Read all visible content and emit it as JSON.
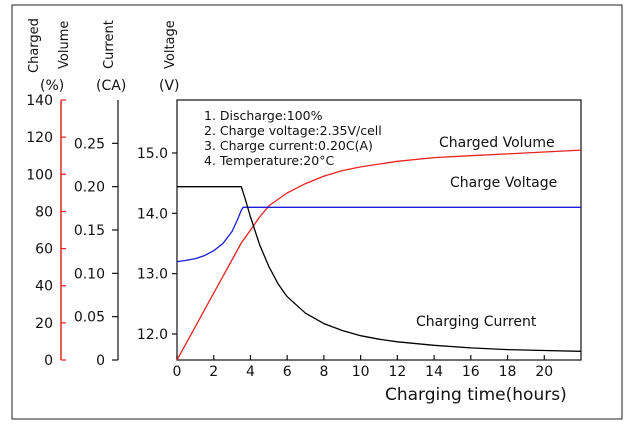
{
  "chart_data": {
    "type": "line",
    "xlabel": "Charging time(hours)",
    "x_ticks": [
      0,
      2,
      4,
      6,
      8,
      10,
      12,
      14,
      16,
      18,
      20
    ],
    "xlim": [
      0,
      22
    ],
    "axes": {
      "charged": {
        "label_line1": "Charged",
        "label_line2": "Volume",
        "unit": "(%)",
        "ticks": [
          0,
          20,
          40,
          60,
          80,
          100,
          120,
          140
        ],
        "ylim": [
          0,
          140
        ],
        "color": "#e8231f"
      },
      "current": {
        "label": "Current",
        "unit": "(CA)",
        "ticks": [
          "0",
          "0.05",
          "0.10",
          "0.15",
          "0.20",
          "0.25"
        ],
        "ylim": [
          0,
          0.3
        ],
        "color": "#000000"
      },
      "voltage": {
        "label": "Voltage",
        "unit": "(V)",
        "ticks": [
          "12.0",
          "13.0",
          "14.0",
          "15.0"
        ],
        "ylim": [
          11.6,
          15.8
        ],
        "color": "#000000"
      }
    },
    "notes": [
      "1. Discharge:100%",
      "2. Charge voltage:2.35V/cell",
      "3. Charge current:0.20C(A)",
      "4. Temperature:20°C"
    ],
    "series": [
      {
        "name": "Charged Volume",
        "axis": "charged",
        "color": "#e8231f",
        "x": [
          0,
          0.5,
          1,
          1.5,
          2,
          2.5,
          3,
          3.5,
          4,
          4.5,
          5,
          6,
          7,
          8,
          9,
          10,
          12,
          14,
          16,
          18,
          20,
          22
        ],
        "y": [
          0,
          9,
          18,
          27,
          36,
          45,
          54,
          63,
          70,
          77,
          83,
          90,
          95,
          99,
          102,
          104,
          107,
          109,
          110,
          111,
          112,
          113
        ]
      },
      {
        "name": "Charge Voltage",
        "axis": "voltage",
        "color": "#1a1adb",
        "x": [
          0,
          0.5,
          1,
          1.5,
          2,
          2.5,
          3,
          3.3,
          3.5,
          3.6,
          4,
          6,
          8,
          10,
          12,
          14,
          16,
          18,
          20,
          22
        ],
        "y": [
          13.2,
          13.22,
          13.25,
          13.3,
          13.38,
          13.5,
          13.7,
          13.9,
          14.05,
          14.1,
          14.1,
          14.1,
          14.1,
          14.1,
          14.1,
          14.1,
          14.1,
          14.1,
          14.1,
          14.1
        ]
      },
      {
        "name": "Charging Current",
        "axis": "current",
        "color": "#000000",
        "x": [
          0,
          3.5,
          3.7,
          4,
          4.5,
          5,
          5.5,
          6,
          7,
          8,
          9,
          10,
          11,
          12,
          14,
          16,
          18,
          20,
          22
        ],
        "y": [
          0.2,
          0.2,
          0.187,
          0.165,
          0.133,
          0.108,
          0.088,
          0.073,
          0.054,
          0.042,
          0.034,
          0.028,
          0.024,
          0.021,
          0.017,
          0.014,
          0.012,
          0.011,
          0.01
        ]
      }
    ]
  }
}
